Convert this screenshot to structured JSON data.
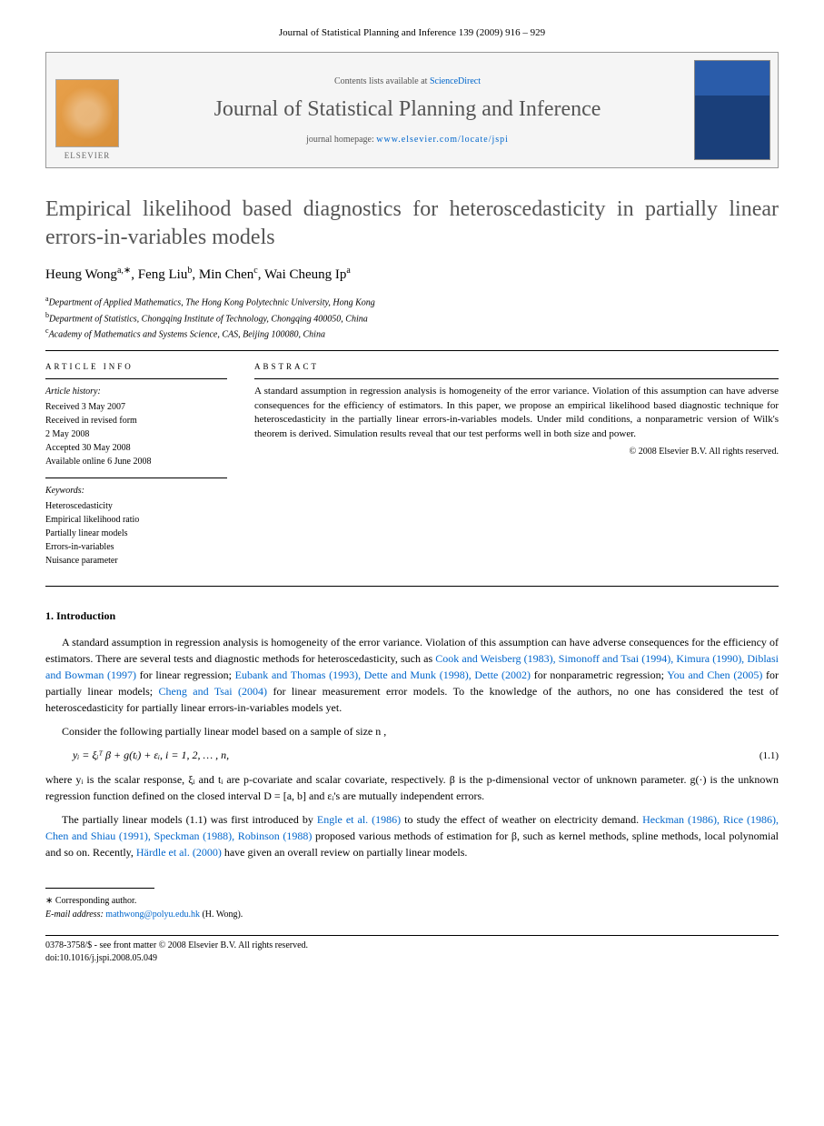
{
  "header": {
    "citation": "Journal of Statistical Planning and Inference 139 (2009) 916 – 929"
  },
  "banner": {
    "contents_prefix": "Contents lists available at ",
    "sciencedirect": "ScienceDirect",
    "journal_title": "Journal of Statistical Planning and Inference",
    "homepage_prefix": "journal homepage: ",
    "homepage_url": "www.elsevier.com/locate/jspi",
    "elsevier_label": "ELSEVIER"
  },
  "article": {
    "title": "Empirical likelihood based diagnostics for heteroscedasticity in partially linear errors-in-variables models",
    "authors_html": "Heung Wong<sup>a,∗</sup>, Feng Liu<sup>b</sup>, Min Chen<sup>c</sup>, Wai Cheung Ip<sup>a</sup>",
    "affiliations": {
      "a": "Department of Applied Mathematics, The Hong Kong Polytechnic University, Hong Kong",
      "b": "Department of Statistics, Chongqing Institute of Technology, Chongqing 400050, China",
      "c": "Academy of Mathematics and Systems Science, CAS, Beijing 100080, China"
    }
  },
  "info": {
    "heading": "ARTICLE INFO",
    "history_label": "Article history:",
    "history": [
      "Received 3 May 2007",
      "Received in revised form",
      "2 May 2008",
      "Accepted 30 May 2008",
      "Available online 6 June 2008"
    ],
    "keywords_label": "Keywords:",
    "keywords": [
      "Heteroscedasticity",
      "Empirical likelihood ratio",
      "Partially linear models",
      "Errors-in-variables",
      "Nuisance parameter"
    ]
  },
  "abstract": {
    "heading": "ABSTRACT",
    "text": "A standard assumption in regression analysis is homogeneity of the error variance. Violation of this assumption can have adverse consequences for the efficiency of estimators. In this paper, we propose an empirical likelihood based diagnostic technique for heteroscedasticity in the partially linear errors-in-variables models. Under mild conditions, a nonparametric version of Wilk's theorem is derived. Simulation results reveal that our test performs well in both size and power.",
    "copyright": "© 2008 Elsevier B.V. All rights reserved."
  },
  "sections": {
    "intro_heading": "1.  Introduction",
    "para1_pre": "A standard assumption in regression analysis is homogeneity of the error variance. Violation of this assumption can have adverse consequences for the efficiency of estimators. There are several tests and diagnostic methods for heteroscedasticity, such as ",
    "refs1": "Cook and Weisberg (1983), Simonoff and Tsai (1994), Kimura (1990), Diblasi and Bowman (1997)",
    "para1_mid1": " for linear regression; ",
    "refs2": "Eubank and Thomas (1993), Dette and Munk (1998), Dette (2002)",
    "para1_mid2": " for nonparametric regression; ",
    "refs3": "You and Chen (2005)",
    "para1_mid3": " for partially linear models; ",
    "refs4": "Cheng and Tsai (2004)",
    "para1_end": " for linear measurement error models. To the knowledge of the authors, no one has considered the test of heteroscedasticity for partially linear errors-in-variables models yet.",
    "para2": "Consider the following partially linear model based on a sample of size n ,",
    "equation": "yᵢ = ξᵢᵀ β + g(tᵢ) + εᵢ,    i = 1, 2, … , n,",
    "eq_num": "(1.1)",
    "para3": "where yᵢ is the scalar response, ξᵢ and tᵢ are p-covariate and scalar covariate, respectively. β is the p-dimensional vector of unknown parameter. g(·) is the unknown regression function defined on the closed interval D = [a, b] and εᵢ's are mutually independent errors.",
    "para4_pre": "The partially linear models (1.1) was first introduced by ",
    "refs5": "Engle et al. (1986)",
    "para4_mid1": " to study the effect of weather on electricity demand. ",
    "refs6": "Heckman (1986), Rice (1986), Chen and Shiau (1991), Speckman (1988), Robinson (1988)",
    "para4_mid2": " proposed various methods of estimation for β, such as kernel methods, spline methods, local polynomial and so on. Recently, ",
    "refs7": "Härdle et al. (2000)",
    "para4_end": " have given an overall review on partially linear models."
  },
  "footnote": {
    "corr": "∗ Corresponding author.",
    "email_label": "E-mail address: ",
    "email": "mathwong@polyu.edu.hk",
    "email_suffix": " (H. Wong)."
  },
  "footer": {
    "line1": "0378-3758/$ - see front matter © 2008 Elsevier B.V. All rights reserved.",
    "line2": "doi:10.1016/j.jspi.2008.05.049"
  },
  "colors": {
    "link": "#0066cc",
    "title_gray": "#555555"
  }
}
